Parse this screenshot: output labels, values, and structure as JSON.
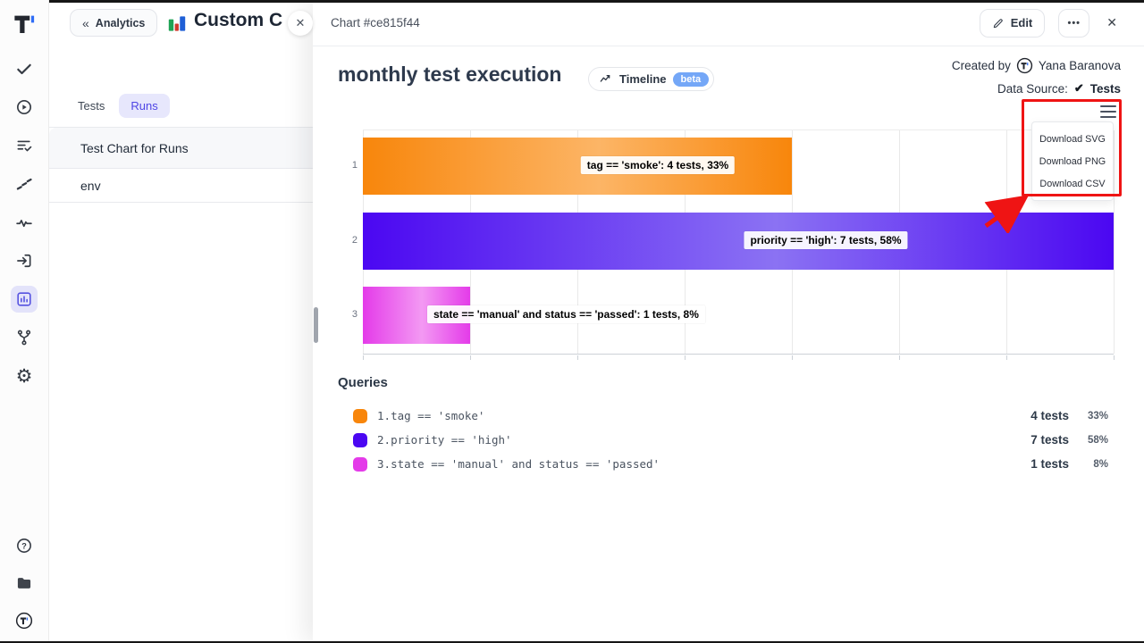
{
  "sidebar": {
    "icons": [
      "tests-check",
      "runs-play",
      "plans-list-check",
      "steps-stairs",
      "pulse-activity",
      "import-arrow",
      "analytics-bars",
      "branch-fork",
      "settings-gear",
      "help-question",
      "projects-folder",
      "account-logo"
    ],
    "active_icon": "analytics-bars"
  },
  "panel": {
    "back_label": "Analytics",
    "back_chevron": "«",
    "title": "Custom C",
    "close_glyph": "✕",
    "tabs": {
      "tests": "Tests",
      "runs": "Runs"
    },
    "items": {
      "first": "Test Chart for Runs",
      "second": "env"
    }
  },
  "overlay": {
    "header": {
      "title": "Chart #ce815f44",
      "edit_label": "Edit",
      "dots_glyph": "•••",
      "close_glyph": "✕"
    },
    "meta": {
      "created_by_label": "Created by",
      "created_by_name": "Yana Baranova",
      "data_source_label": "Data Source:",
      "data_source_check": "✔",
      "data_source_value": "Tests"
    },
    "timeline": {
      "label": "Timeline",
      "beta": "beta"
    },
    "menu": {
      "items": [
        "Download SVG",
        "Download PNG",
        "Download CSV"
      ]
    },
    "annotation_color": "#ef1414",
    "queries": {
      "heading": "Queries",
      "rows": [
        {
          "num": "1.",
          "query": "tag == 'smoke'",
          "tests": "4 tests",
          "percent": "33%"
        },
        {
          "num": "2.",
          "query": "priority == 'high'",
          "tests": "7 tests",
          "percent": "58%"
        },
        {
          "num": "3.",
          "query": "state == 'manual' and status == 'passed'",
          "tests": "1 tests",
          "percent": "8%"
        }
      ]
    }
  },
  "chart_data": {
    "type": "bar",
    "orientation": "horizontal",
    "title": "monthly test execution",
    "categories": [
      "1",
      "2",
      "3"
    ],
    "values": [
      4,
      7,
      1
    ],
    "percents": [
      33,
      58,
      8
    ],
    "units": "tests",
    "bar_labels": [
      "tag == 'smoke': 4 tests, 33%",
      "priority == 'high': 7 tests, 58%",
      "state == 'manual' and status == 'passed': 1 tests, 8%"
    ],
    "colors": [
      {
        "edge": "#f8860b",
        "mid": "#fcb566"
      },
      {
        "edge": "#4b07f2",
        "mid": "#8b72f3"
      },
      {
        "edge": "#e43be9",
        "mid": "#f399f3"
      }
    ],
    "xlim": [
      0,
      7
    ],
    "grid": true,
    "legend": false
  }
}
